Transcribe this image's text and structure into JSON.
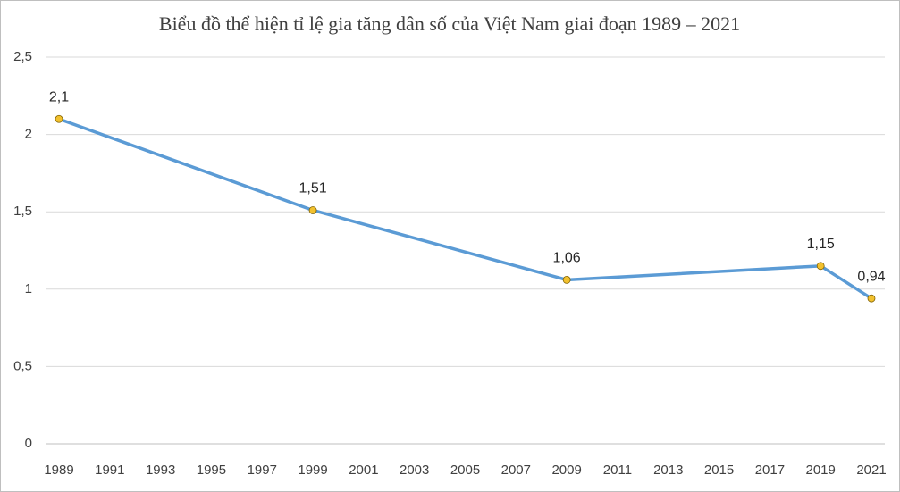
{
  "chart_data": {
    "type": "line",
    "title": "Biểu đồ thể hiện tỉ lệ gia tăng dân số của Việt Nam giai đoạn 1989 – 2021",
    "x": [
      1989,
      1999,
      2009,
      2019,
      2021
    ],
    "values": [
      2.1,
      1.51,
      1.06,
      1.15,
      0.94
    ],
    "value_labels": [
      "2,1",
      "1,51",
      "1,06",
      "1,15",
      "0,94"
    ],
    "color": "#5b9bd5",
    "marker_color": "#f2c12e",
    "xlim": [
      1989,
      2021
    ],
    "xticks": [
      1989,
      1991,
      1993,
      1995,
      1997,
      1999,
      2001,
      2003,
      2005,
      2007,
      2009,
      2011,
      2013,
      2015,
      2017,
      2019,
      2021
    ],
    "ylim": [
      0,
      2.5
    ],
    "yticks": [
      0,
      {
        "value": 0.5,
        "label": "0,5"
      },
      1,
      {
        "value": 1.5,
        "label": "1,5"
      },
      2,
      {
        "value": 2.5,
        "label": "2,5"
      }
    ],
    "grid": true
  }
}
